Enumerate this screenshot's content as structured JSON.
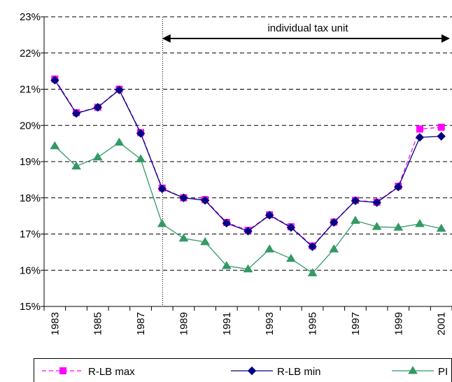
{
  "chart_data": {
    "type": "line",
    "categories": [
      "1983",
      null,
      "1985",
      null,
      "1987",
      null,
      "1989",
      null,
      "1991",
      null,
      "1993",
      null,
      "1995",
      null,
      "1997",
      null,
      "1999",
      null,
      "2001"
    ],
    "series": [
      {
        "name": "R-LB max",
        "color": "#ff00ff",
        "marker": "square",
        "dash": true,
        "values": [
          21.28,
          20.35,
          20.5,
          21.0,
          19.8,
          18.27,
          18.0,
          17.95,
          17.32,
          17.1,
          17.53,
          17.2,
          16.67,
          17.33,
          17.93,
          17.88,
          18.32,
          19.9,
          19.95
        ]
      },
      {
        "name": "R-LB min",
        "color": "#000080",
        "marker": "diamond",
        "dash": false,
        "values": [
          21.25,
          20.33,
          20.5,
          20.98,
          19.78,
          18.25,
          18.0,
          17.93,
          17.3,
          17.08,
          17.52,
          17.18,
          16.65,
          17.32,
          17.92,
          17.87,
          18.3,
          19.67,
          19.7
        ]
      },
      {
        "name": "PI",
        "color": "#339966",
        "marker": "triangle",
        "dash": false,
        "values": [
          19.43,
          18.87,
          19.12,
          19.53,
          19.07,
          17.28,
          16.88,
          16.78,
          16.12,
          16.03,
          16.58,
          16.32,
          15.92,
          16.58,
          17.37,
          17.2,
          17.18,
          17.28,
          17.15
        ]
      }
    ],
    "ylim": [
      15,
      23
    ],
    "yticks": [
      {
        "value": 15,
        "label": "15%"
      },
      {
        "value": 16,
        "label": "16%"
      },
      {
        "value": 17,
        "label": "17%"
      },
      {
        "value": 18,
        "label": "18%"
      },
      {
        "value": 19,
        "label": "19%"
      },
      {
        "value": 20,
        "label": "20%"
      },
      {
        "value": 21,
        "label": "21%"
      },
      {
        "value": 22,
        "label": "22%"
      },
      {
        "value": 23,
        "label": "23%"
      }
    ],
    "grid": true,
    "legend": "bottom",
    "annotation": "individual tax unit"
  }
}
